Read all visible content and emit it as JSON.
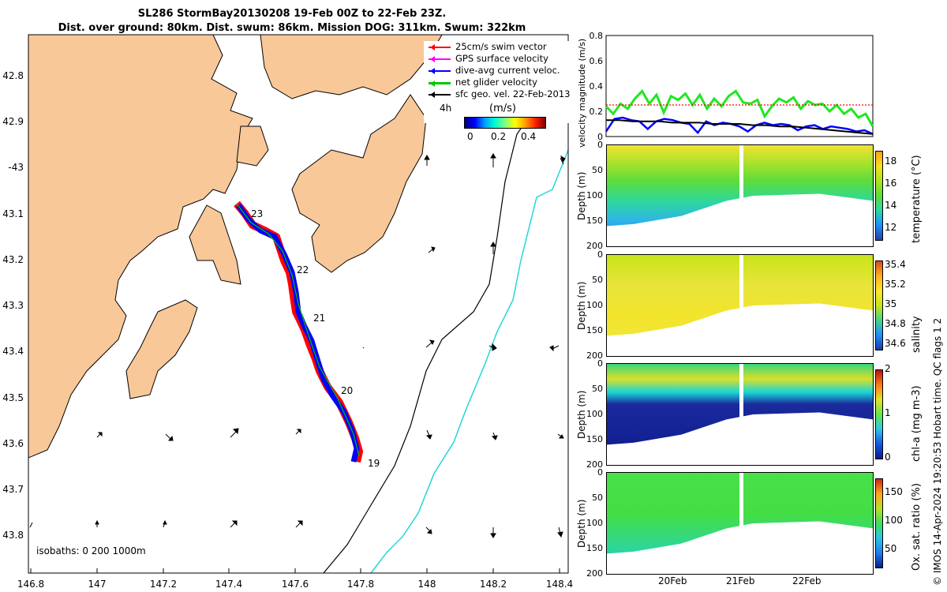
{
  "title_line1": "SL286 StormBay20130208 19-Feb 00Z to 22-Feb 23Z.",
  "title_line2": "Dist. over ground: 80km. Dist. swum: 86km. Mission DOG: 311km. Swum: 322km",
  "footer": "© IMOS 14-Apr-2024 19:20:53 Hobart time. QC flags 1  2",
  "colors": {
    "land": "#f9c899",
    "track_red": "#ff0000",
    "track_blue": "#0000ff",
    "track_green": "#00c000",
    "cyan": "#25d6d6",
    "vel_green": "#1fe81f",
    "vel_red": "#ff0000"
  },
  "map": {
    "lon_ticks": [
      "146.8",
      "147",
      "147.2",
      "147.4",
      "147.6",
      "147.8",
      "148",
      "148.2",
      "148.4"
    ],
    "lat_ticks": [
      "42.8",
      "42.9",
      "-43",
      "43.1",
      "43.2",
      "43.3",
      "43.4",
      "43.5",
      "43.6",
      "43.7",
      "43.8"
    ],
    "day_labels": [
      "23",
      "22",
      "21",
      "20",
      "19"
    ],
    "legend": [
      {
        "label": "25cm/s swim vector",
        "color": "#ff0000"
      },
      {
        "label": "GPS surface velocity",
        "color": "#ff00ff"
      },
      {
        "label": "dive-avg current veloc.",
        "color": "#0000ff"
      },
      {
        "label": "net glider velocity",
        "color": "#00c800"
      },
      {
        "label": "sfc geo. vel. 22-Feb-2013",
        "color": "#000000"
      }
    ],
    "colorbar_label": "(m/s)",
    "colorbar_interval": "4h",
    "colorbar_ticks": [
      "0",
      "0.2",
      "0.4"
    ],
    "isobaths": "isobaths: 0   200  1000m"
  },
  "chart_data": [
    {
      "type": "line",
      "ylabel": "velocity magnitude (m/s)",
      "ylim": [
        0,
        0.8
      ],
      "yticks": [
        "0",
        "0.2",
        "0.4",
        "0.6",
        "0.8"
      ],
      "series": [
        {
          "color": "#1fe81f",
          "values": [
            0.24,
            0.18,
            0.26,
            0.22,
            0.3,
            0.36,
            0.26,
            0.33,
            0.19,
            0.32,
            0.29,
            0.34,
            0.25,
            0.33,
            0.22,
            0.3,
            0.24,
            0.32,
            0.36,
            0.27,
            0.26,
            0.29,
            0.16,
            0.24,
            0.3,
            0.27,
            0.31,
            0.22,
            0.28,
            0.25,
            0.26,
            0.2,
            0.25,
            0.18,
            0.22,
            0.15,
            0.18,
            0.08
          ]
        },
        {
          "color": "#0000ff",
          "values": [
            0.04,
            0.14,
            0.15,
            0.13,
            0.12,
            0.06,
            0.12,
            0.14,
            0.13,
            0.11,
            0.1,
            0.03,
            0.12,
            0.09,
            0.11,
            0.1,
            0.08,
            0.04,
            0.09,
            0.11,
            0.09,
            0.1,
            0.09,
            0.05,
            0.08,
            0.09,
            0.06,
            0.08,
            0.07,
            0.06,
            0.04,
            0.05,
            0.02
          ]
        },
        {
          "color": "#000000",
          "values": [
            0.13,
            0.13,
            0.12,
            0.12,
            0.12,
            0.11,
            0.11,
            0.11,
            0.1,
            0.1,
            0.1,
            0.09,
            0.09,
            0.08,
            0.08,
            0.07,
            0.06,
            0.05,
            0.04,
            0.03,
            0.02
          ]
        },
        {
          "color": "#ff0000",
          "values": [
            0.25,
            0.25,
            0.25,
            0.25,
            0.25,
            0.25,
            0.25,
            0.25,
            0.25,
            0.25,
            0.25,
            0.25
          ]
        }
      ]
    },
    {
      "type": "heatmap",
      "ylabel": "Depth (m)",
      "cbar_label": "temperature (°C)",
      "ylim": [
        200,
        0
      ],
      "yticks": [
        "0",
        "50",
        "100",
        "150",
        "200"
      ],
      "cticks": [
        "12",
        "14",
        "16",
        "18"
      ],
      "clim": [
        11,
        19
      ]
    },
    {
      "type": "heatmap",
      "ylabel": "Depth (m)",
      "cbar_label": "salinity",
      "ylim": [
        200,
        0
      ],
      "yticks": [
        "0",
        "50",
        "100",
        "150",
        "200"
      ],
      "cticks": [
        "34.6",
        "34.8",
        "35",
        "35.2",
        "35.4"
      ],
      "clim": [
        34.55,
        35.45
      ]
    },
    {
      "type": "heatmap",
      "ylabel": "Depth (m)",
      "cbar_label": "chl-a (mg m-3)",
      "ylim": [
        200,
        0
      ],
      "yticks": [
        "0",
        "50",
        "100",
        "150",
        "200"
      ],
      "cticks": [
        "0",
        "1",
        "2"
      ],
      "clim": [
        0,
        2
      ]
    },
    {
      "type": "heatmap",
      "ylabel": "Depth (m)",
      "cbar_label": "Ox. sat. ratio (%)",
      "ylim": [
        200,
        0
      ],
      "yticks": [
        "0",
        "50",
        "100",
        "150",
        "200"
      ],
      "cticks": [
        "50",
        "100",
        "150"
      ],
      "clim": [
        20,
        175
      ],
      "xticks": [
        "20Feb",
        "21Feb",
        "22Feb"
      ]
    }
  ]
}
